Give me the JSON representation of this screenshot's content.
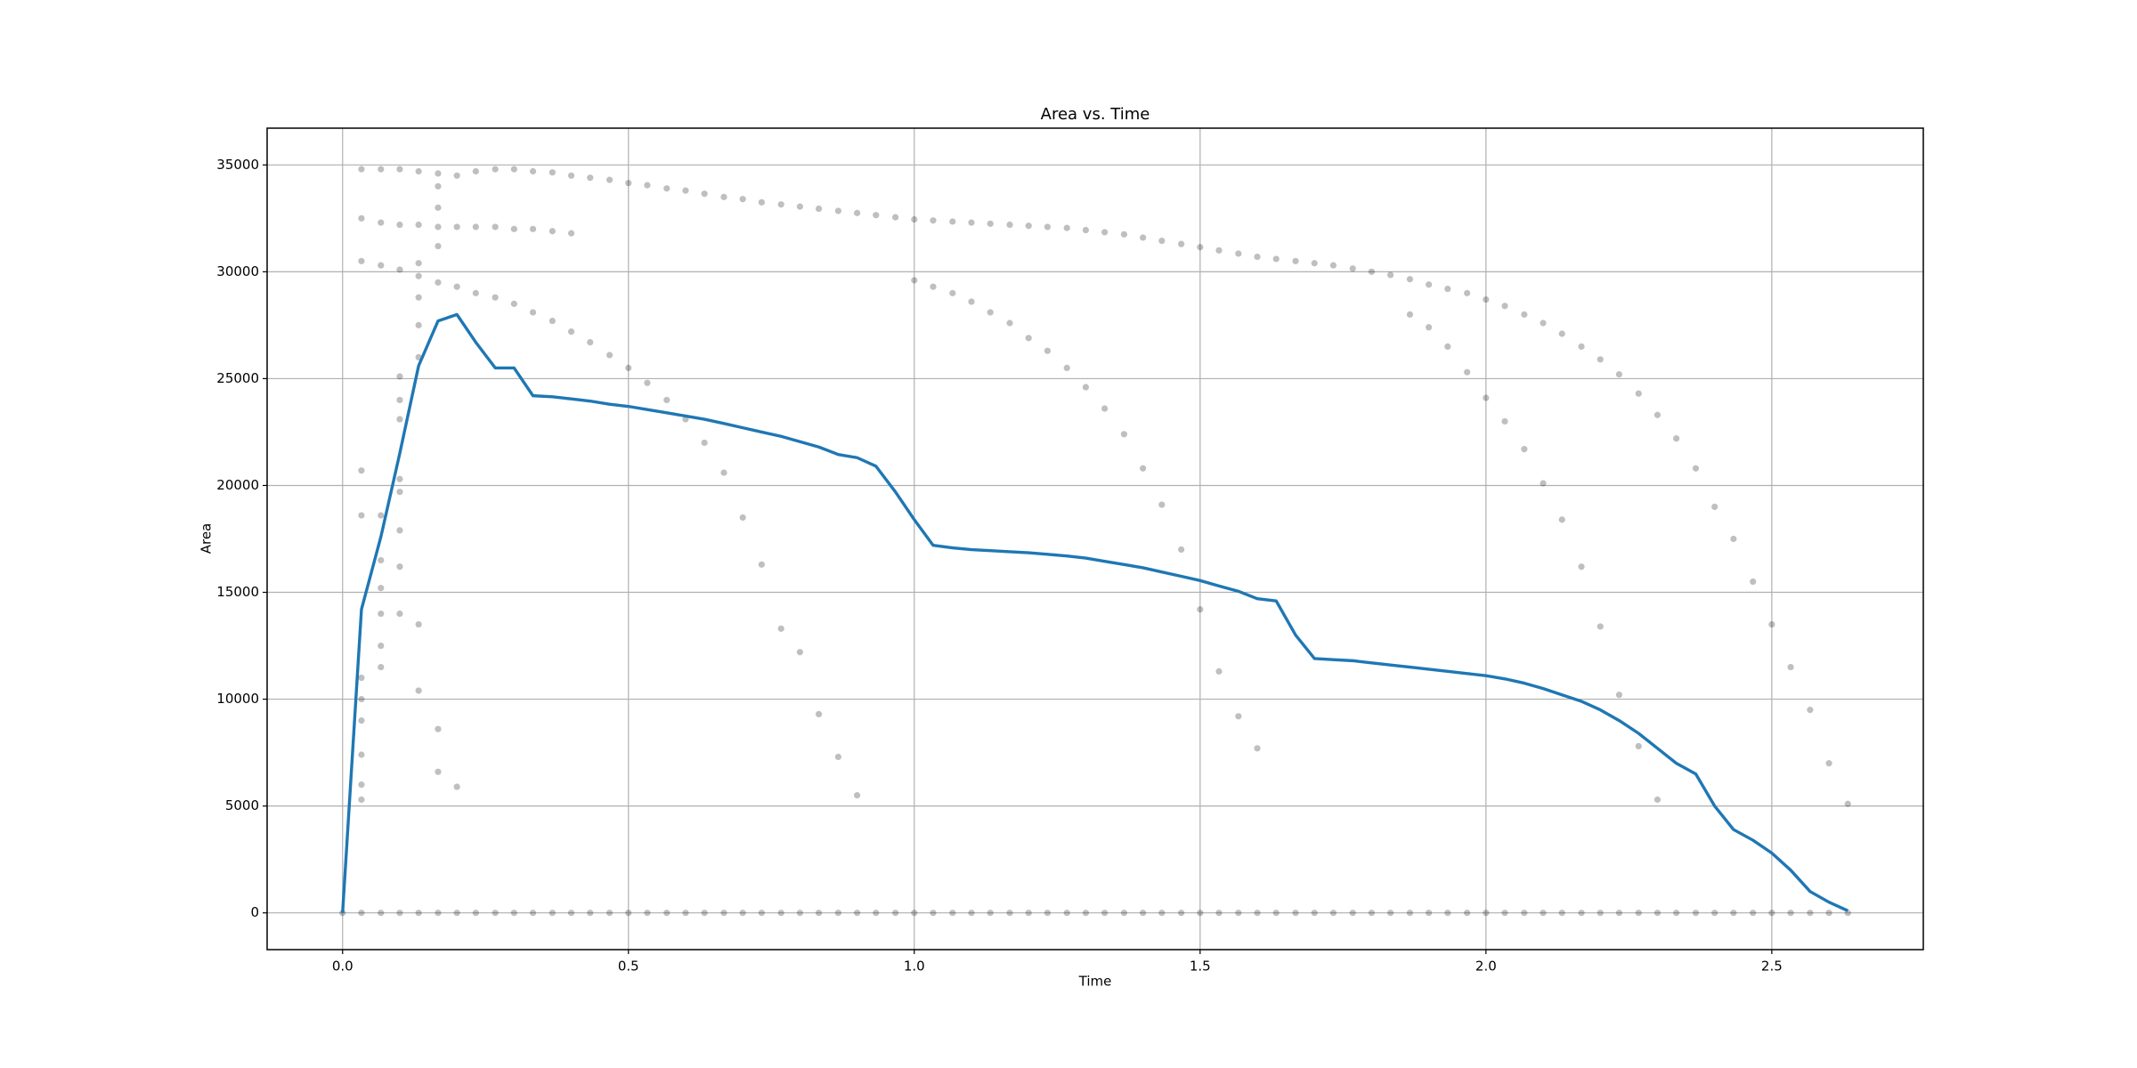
{
  "chart_data": {
    "type": "line",
    "title": "Area vs. Time",
    "x_label": "Time",
    "y_label": "Area",
    "xlim": [
      -0.132,
      2.765
    ],
    "ylim": [
      -1720,
      36720
    ],
    "xticks": [
      {
        "value": 0,
        "label": "0.0"
      },
      0.5,
      {
        "value": 1,
        "label": "1.0"
      },
      1.5,
      {
        "value": 2,
        "label": "2.0"
      },
      2.5
    ],
    "yticks": [
      0,
      5000,
      10000,
      15000,
      20000,
      25000,
      30000,
      35000
    ],
    "grid": true,
    "x": [
      0,
      0.033,
      0.067,
      0.1,
      0.133,
      0.167,
      0.2,
      0.233,
      0.267,
      0.3,
      0.333,
      0.367,
      0.4,
      0.433,
      0.467,
      0.5,
      0.533,
      0.567,
      0.6,
      0.633,
      0.667,
      0.7,
      0.733,
      0.767,
      0.8,
      0.833,
      0.867,
      0.9,
      0.933,
      0.967,
      1.0,
      1.033,
      1.067,
      1.1,
      1.133,
      1.167,
      1.2,
      1.233,
      1.267,
      1.3,
      1.333,
      1.367,
      1.4,
      1.433,
      1.467,
      1.5,
      1.533,
      1.567,
      1.6,
      1.633,
      1.667,
      1.7,
      1.733,
      1.767,
      1.8,
      1.833,
      1.867,
      1.9,
      1.933,
      1.967,
      2.0,
      2.033,
      2.067,
      2.1,
      2.133,
      2.167,
      2.2,
      2.233,
      2.267,
      2.3,
      2.333,
      2.367,
      2.4,
      2.433,
      2.467,
      2.5,
      2.533,
      2.567,
      2.6,
      2.633
    ],
    "series": [
      {
        "type": "scatter",
        "color": "#000000",
        "opacity": 0.25,
        "values": [
          0,
          0,
          0,
          0,
          0,
          0,
          0,
          0,
          0,
          0,
          0,
          0,
          0,
          0,
          0,
          0,
          0,
          0,
          0,
          0,
          0,
          0,
          0,
          0,
          0,
          0,
          0,
          0,
          0,
          0,
          0,
          0,
          0,
          0,
          0,
          0,
          0,
          0,
          0,
          0,
          0,
          0,
          0,
          0,
          0,
          0,
          0,
          0,
          0,
          0,
          0,
          0,
          0,
          0,
          0,
          0,
          0,
          0,
          0,
          0,
          0,
          0,
          0,
          0,
          0,
          0,
          0,
          0,
          0,
          0,
          0,
          0,
          0,
          0,
          0,
          0,
          0,
          0,
          0,
          0
        ]
      },
      {
        "type": "scatter",
        "color": "#000000",
        "opacity": 0.25,
        "values": [
          null,
          34800,
          34800,
          34800,
          34700,
          34600,
          34500,
          34700,
          34800,
          34800,
          34700,
          34650,
          34500,
          34400,
          34300,
          34150,
          34050,
          33900,
          33800,
          33650,
          33500,
          33400,
          33250,
          33150,
          33050,
          32950,
          32850,
          32750,
          32650,
          32550,
          32450,
          32400,
          32350,
          32300,
          32250,
          32200,
          32150,
          32100,
          32050,
          31950,
          31850,
          31750,
          31600,
          31450,
          31300,
          31150,
          31000,
          30850,
          30700,
          30600,
          30500,
          30400,
          30300,
          30150,
          30000,
          29850,
          29650,
          29400,
          29200,
          29000,
          28700,
          28400,
          28000,
          27600,
          27100,
          26500,
          25900,
          25200,
          24300,
          23300,
          22200,
          20800,
          19000,
          17500,
          15500,
          13500,
          11500,
          9500,
          7000,
          5100
        ]
      },
      {
        "type": "scatter",
        "color": "#000000",
        "opacity": 0.25,
        "x": [
          0.033,
          0.067,
          0.1,
          0.133,
          0.167,
          0.2,
          0.233,
          0.267,
          0.3,
          0.333,
          0.367,
          0.4
        ],
        "values": [
          32500,
          32300,
          32200,
          32200,
          32100,
          32100,
          32100,
          32100,
          32000,
          32000,
          31900,
          31800
        ]
      },
      {
        "type": "scatter",
        "color": "#000000",
        "opacity": 0.25,
        "x": [
          0.033,
          0.067,
          0.1,
          0.133,
          0.167,
          0.2,
          0.233,
          0.267,
          0.3,
          0.333,
          0.367,
          0.4,
          0.433,
          0.467,
          0.5,
          0.533,
          0.567,
          0.6,
          0.633,
          0.667,
          0.7,
          0.733,
          0.767,
          0.8,
          0.833,
          0.867,
          0.9
        ],
        "values": [
          30500,
          30300,
          30100,
          29800,
          29500,
          29300,
          29000,
          28800,
          28500,
          28100,
          27700,
          27200,
          26700,
          26100,
          25500,
          24800,
          24000,
          23100,
          22000,
          20600,
          18500,
          16300,
          13300,
          12200,
          9300,
          7300,
          5500
        ]
      },
      {
        "type": "scatter",
        "color": "#000000",
        "opacity": 0.25,
        "x": [
          1.0,
          1.033,
          1.067,
          1.1,
          1.133,
          1.167,
          1.2,
          1.233,
          1.267,
          1.3,
          1.333,
          1.367,
          1.4,
          1.433,
          1.467,
          1.5,
          1.533,
          1.567,
          1.6
        ],
        "values": [
          29600,
          29300,
          29000,
          28600,
          28100,
          27600,
          26900,
          26300,
          25500,
          24600,
          23600,
          22400,
          20800,
          19100,
          17000,
          14200,
          11300,
          9200,
          7700
        ]
      },
      {
        "type": "scatter",
        "color": "#000000",
        "opacity": 0.25,
        "x": [
          1.867,
          1.9,
          1.933,
          1.967,
          2.0,
          2.033,
          2.067,
          2.1,
          2.133,
          2.167,
          2.2,
          2.233,
          2.267,
          2.3
        ],
        "values": [
          28000,
          27400,
          26500,
          25300,
          24100,
          23000,
          21700,
          20100,
          18400,
          16200,
          13400,
          10200,
          7800,
          5300
        ]
      },
      {
        "type": "scatter",
        "color": "#000000",
        "opacity": 0.25,
        "x": [
          0.033,
          0.033,
          0.033,
          0.033,
          0.033,
          0.033,
          0.033,
          0.033,
          0.067,
          0.067,
          0.067,
          0.067,
          0.067,
          0.067,
          0.1,
          0.1,
          0.1,
          0.1,
          0.1,
          0.1,
          0.1,
          0.1,
          0.133,
          0.133,
          0.133,
          0.133,
          0.133,
          0.133,
          0.167,
          0.167,
          0.167,
          0.167,
          0.167,
          0.2
        ],
        "values": [
          5300,
          6000,
          7400,
          9000,
          10000,
          11000,
          18600,
          20700,
          11500,
          12500,
          14000,
          15200,
          16500,
          18600,
          14000,
          16200,
          17900,
          19700,
          20300,
          23100,
          24000,
          25100,
          10400,
          13500,
          26000,
          27500,
          28800,
          30400,
          6600,
          8600,
          31200,
          33000,
          34000,
          5900
        ]
      },
      {
        "type": "line",
        "color": "#1f77b4",
        "values": [
          0,
          14200,
          17600,
          21500,
          25600,
          27700,
          28000,
          26700,
          25500,
          25500,
          24200,
          24150,
          24050,
          23950,
          23800,
          23700,
          23550,
          23400,
          23250,
          23100,
          22900,
          22700,
          22500,
          22300,
          22050,
          21800,
          21450,
          21300,
          20900,
          19700,
          18400,
          17200,
          17080,
          17000,
          16950,
          16900,
          16850,
          16780,
          16700,
          16600,
          16450,
          16300,
          16150,
          15950,
          15750,
          15550,
          15300,
          15050,
          14700,
          14600,
          13000,
          11900,
          11850,
          11800,
          11700,
          11600,
          11500,
          11400,
          11300,
          11200,
          11100,
          10950,
          10750,
          10500,
          10200,
          9900,
          9500,
          9000,
          8400,
          7700,
          7000,
          6500,
          5000,
          3900,
          3400,
          2800,
          2000,
          1000,
          500,
          100
        ]
      }
    ]
  }
}
